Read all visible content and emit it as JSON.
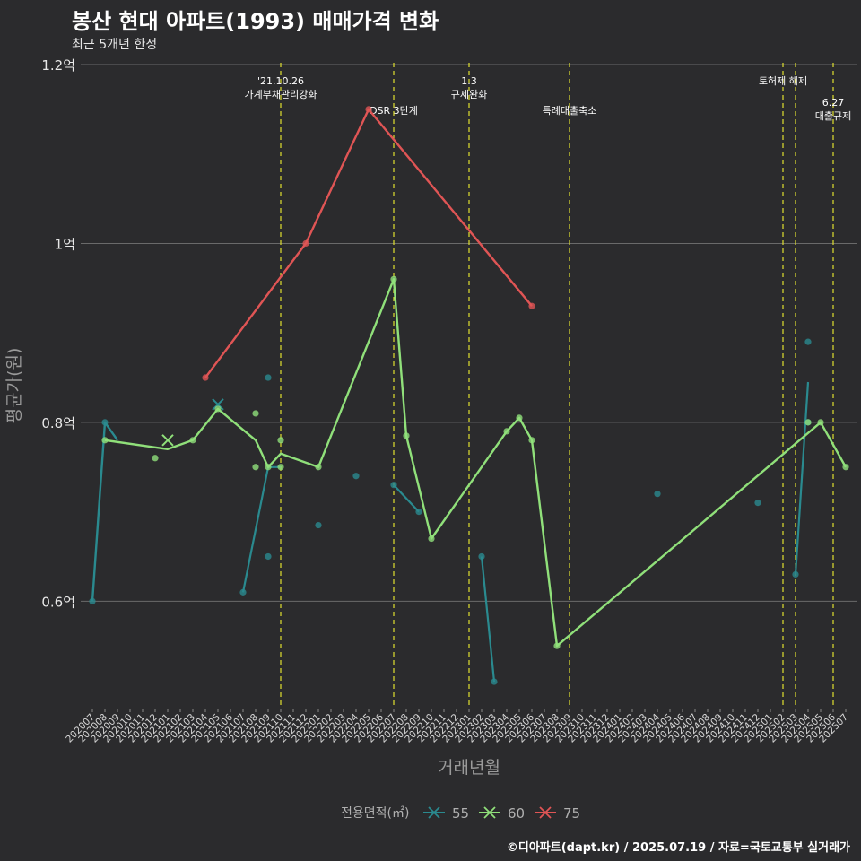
{
  "title": "봉산 현대 아파트(1993) 매매가격 변화",
  "subtitle": "최근 5개년 한정",
  "caption": "©디아파트(dapt.kr) / 2025.07.19 / 자료=국토교통부 실거래가",
  "chart_data": {
    "type": "line",
    "xlabel": "거래년월",
    "ylabel": "평균가(원)",
    "x_categories": [
      "202007",
      "202008",
      "202009",
      "202010",
      "202011",
      "202012",
      "202101",
      "202102",
      "202103",
      "202104",
      "202105",
      "202106",
      "202107",
      "202108",
      "202109",
      "202110",
      "202111",
      "202112",
      "202201",
      "202202",
      "202203",
      "202204",
      "202205",
      "202206",
      "202207",
      "202208",
      "202209",
      "202210",
      "202211",
      "202212",
      "202301",
      "202302",
      "202303",
      "202304",
      "202305",
      "202306",
      "202307",
      "202308",
      "202309",
      "202310",
      "202311",
      "202312",
      "202401",
      "202402",
      "202403",
      "202404",
      "202405",
      "202406",
      "202407",
      "202408",
      "202409",
      "202410",
      "202411",
      "202412",
      "202501",
      "202502",
      "202503",
      "202504",
      "202505",
      "202506",
      "202507"
    ],
    "ylim": [
      0.48,
      1.2
    ],
    "y_ticks": [
      {
        "value": 0.6,
        "label": "0.6억"
      },
      {
        "value": 0.8,
        "label": "0.8억"
      },
      {
        "value": 1.0,
        "label": "1억"
      },
      {
        "value": 1.2,
        "label": "1.2억"
      }
    ],
    "grid": true,
    "legend": {
      "title": "전용면적(㎡)",
      "position": "bottom"
    },
    "series": [
      {
        "name": "55",
        "color": "#2a8a8f",
        "line": [
          [
            "202007",
            0.6
          ],
          [
            "202008",
            0.8
          ],
          [
            "202009",
            0.78
          ]
        ],
        "line_segments": [
          [
            [
              "202107",
              0.61
            ],
            [
              "202109",
              0.75
            ],
            [
              "202110",
              0.75
            ]
          ],
          [
            [
              "202207",
              0.73
            ],
            [
              "202209",
              0.7
            ]
          ],
          [
            [
              "202302",
              0.65
            ],
            [
              "202303",
              0.51
            ]
          ],
          [
            [
              "202503",
              0.63
            ],
            [
              "202504",
              0.845
            ]
          ]
        ],
        "points": [
          [
            "202007",
            0.6
          ],
          [
            "202008",
            0.8
          ],
          [
            "202109",
            0.85
          ],
          [
            "202109",
            0.65
          ],
          [
            "202107",
            0.61
          ],
          [
            "202201",
            0.685
          ],
          [
            "202204",
            0.74
          ],
          [
            "202207",
            0.73
          ],
          [
            "202209",
            0.7
          ],
          [
            "202302",
            0.65
          ],
          [
            "202303",
            0.51
          ],
          [
            "202404",
            0.72
          ],
          [
            "202412",
            0.71
          ],
          [
            "202503",
            0.63
          ],
          [
            "202504",
            0.89
          ],
          [
            "202504",
            0.8
          ]
        ],
        "x_marks": [
          [
            "202105",
            0.82
          ]
        ]
      },
      {
        "name": "60",
        "color": "#90e07a",
        "line": [
          [
            "202008",
            0.78
          ],
          [
            "202101",
            0.77
          ],
          [
            "202103",
            0.78
          ],
          [
            "202105",
            0.815
          ],
          [
            "202108",
            0.78
          ],
          [
            "202109",
            0.75
          ],
          [
            "202110",
            0.765
          ],
          [
            "202201",
            0.75
          ],
          [
            "202207",
            0.96
          ],
          [
            "202208",
            0.785
          ],
          [
            "202210",
            0.67
          ],
          [
            "202304",
            0.79
          ],
          [
            "202305",
            0.805
          ],
          [
            "202306",
            0.78
          ],
          [
            "202308",
            0.55
          ],
          [
            "202505",
            0.8
          ],
          [
            "202507",
            0.75
          ]
        ],
        "points": [
          [
            "202008",
            0.78
          ],
          [
            "202012",
            0.76
          ],
          [
            "202103",
            0.78
          ],
          [
            "202105",
            0.815
          ],
          [
            "202108",
            0.81
          ],
          [
            "202108",
            0.75
          ],
          [
            "202109",
            0.75
          ],
          [
            "202110",
            0.78
          ],
          [
            "202110",
            0.75
          ],
          [
            "202201",
            0.75
          ],
          [
            "202207",
            0.96
          ],
          [
            "202208",
            0.785
          ],
          [
            "202210",
            0.67
          ],
          [
            "202304",
            0.79
          ],
          [
            "202305",
            0.805
          ],
          [
            "202306",
            0.78
          ],
          [
            "202308",
            0.55
          ],
          [
            "202504",
            0.8
          ],
          [
            "202505",
            0.8
          ],
          [
            "202507",
            0.75
          ]
        ],
        "x_marks": [
          [
            "202101",
            0.78
          ]
        ]
      },
      {
        "name": "75",
        "color": "#e05555",
        "line": [
          [
            "202104",
            0.85
          ],
          [
            "202112",
            1.0
          ],
          [
            "202205",
            1.15
          ],
          [
            "202306",
            0.93
          ]
        ],
        "points": [
          [
            "202104",
            0.85
          ],
          [
            "202112",
            1.0
          ],
          [
            "202205",
            1.15
          ],
          [
            "202306",
            0.93
          ]
        ],
        "x_marks": []
      }
    ],
    "events": [
      {
        "x": "202110",
        "lines": [
          "'21.10.26",
          "가계부채관리강화"
        ],
        "level": 1
      },
      {
        "x": "202207",
        "lines": [
          "DSR 3단계"
        ],
        "level": 2
      },
      {
        "x": "202301",
        "lines": [
          "1.3",
          "규제완화"
        ],
        "level": 1
      },
      {
        "x": "202309",
        "lines": [
          "특례대출축소"
        ],
        "level": 2
      },
      {
        "x": "202502",
        "lines": [
          "토허제 해제"
        ],
        "level": 1
      },
      {
        "x": "202503",
        "lines": [],
        "level": 1
      },
      {
        "x": "202506",
        "lines": [
          "6.27",
          "대출규제"
        ],
        "level": 3
      }
    ]
  }
}
